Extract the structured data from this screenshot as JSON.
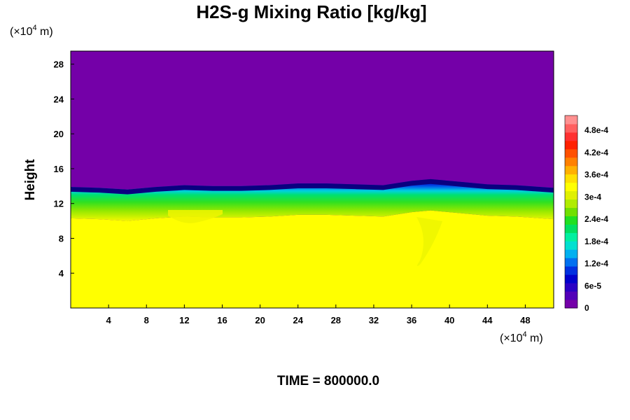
{
  "chart_data": {
    "type": "heatmap",
    "title": "H2S-g Mixing Ratio [kg/kg]",
    "ylabel": "Height",
    "x_unit_prefix": "(×10",
    "x_unit_exp": "4",
    "x_unit_suffix": " m)",
    "y_unit_prefix": "(×10",
    "y_unit_exp": "4",
    "y_unit_suffix": " m)",
    "xlim": [
      0,
      51
    ],
    "ylim": [
      0,
      29.5
    ],
    "x_ticks": [
      4,
      8,
      12,
      16,
      20,
      24,
      28,
      32,
      36,
      40,
      44,
      48
    ],
    "x_tick_labels": [
      "4",
      "8",
      "12",
      "16",
      "20",
      "24",
      "28",
      "32",
      "36",
      "40",
      "44",
      "48"
    ],
    "y_ticks": [
      4,
      8,
      12,
      16,
      20,
      24,
      28
    ],
    "y_tick_labels": [
      "4",
      "8",
      "12",
      "16",
      "20",
      "24",
      "28"
    ],
    "footer": "TIME = 800000.0",
    "colorbar": {
      "min": 0,
      "max": 0.00052,
      "tick_values": [
        0,
        6e-05,
        0.00012,
        0.00018,
        0.00024,
        0.0003,
        0.00036,
        0.00042,
        0.00048
      ],
      "tick_labels": [
        "0",
        "6e-5",
        "1.2e-4",
        "1.8e-4",
        "2.4e-4",
        "3e-4",
        "3.6e-4",
        "4.2e-4",
        "4.8e-4"
      ],
      "colors": [
        "#7400a8",
        "#5200b8",
        "#2a00c4",
        "#0000cc",
        "#0030e0",
        "#0070f0",
        "#00b0f0",
        "#00e0d0",
        "#00f0a0",
        "#00e060",
        "#20e020",
        "#70e000",
        "#b0ec00",
        "#e0f000",
        "#ffff00",
        "#ffe000",
        "#ffb000",
        "#ff8000",
        "#ff5000",
        "#ff2000",
        "#ff3030",
        "#ff6060",
        "#ff9090"
      ]
    },
    "interface": {
      "x": [
        0,
        3,
        6,
        9,
        12,
        15,
        18,
        21,
        24,
        27,
        30,
        33,
        36,
        38,
        41,
        44,
        47,
        51
      ],
      "y": [
        13.9,
        13.8,
        13.6,
        13.9,
        14.1,
        14.0,
        14.0,
        14.1,
        14.3,
        14.3,
        14.2,
        14.1,
        14.6,
        14.8,
        14.5,
        14.2,
        14.1,
        13.8
      ]
    },
    "regions": [
      {
        "name": "upper",
        "value": 0
      },
      {
        "name": "lower",
        "value": 0.00035
      }
    ]
  }
}
